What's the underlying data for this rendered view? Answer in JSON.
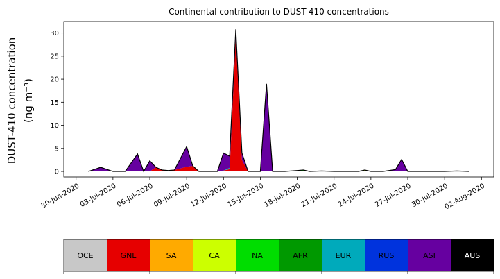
{
  "chart_data": {
    "type": "area",
    "title": "Continental contribution to DUST-410 concentrations",
    "xlabel": "",
    "ylabel_line1": "DUST-410 concentration",
    "ylabel_line2": "(ng m⁻³)",
    "ylim": [
      -1.2,
      32.5
    ],
    "xlim": [
      "2020-06-29",
      "2020-08-03"
    ],
    "yticks": [
      0,
      5,
      10,
      15,
      20,
      25,
      30
    ],
    "xticks": [
      "2020-06-30",
      "2020-07-03",
      "2020-07-06",
      "2020-07-09",
      "2020-07-12",
      "2020-07-15",
      "2020-07-18",
      "2020-07-21",
      "2020-07-24",
      "2020-07-27",
      "2020-07-30",
      "2020-08-02"
    ],
    "xtick_labels": [
      "30-Jun-2020",
      "03-Jul-2020",
      "06-Jul-2020",
      "09-Jul-2020",
      "12-Jul-2020",
      "15-Jul-2020",
      "18-Jul-2020",
      "21-Jul-2020",
      "24-Jul-2020",
      "27-Jul-2020",
      "30-Jul-2020",
      "02-Aug-2020"
    ],
    "x": [
      "2020-07-01",
      "2020-07-02",
      "2020-07-03",
      "2020-07-03 12:00",
      "2020-07-04",
      "2020-07-05",
      "2020-07-05 12:00",
      "2020-07-06",
      "2020-07-06 12:00",
      "2020-07-07",
      "2020-07-07 12:00",
      "2020-07-08",
      "2020-07-09",
      "2020-07-09 12:00",
      "2020-07-10",
      "2020-07-11",
      "2020-07-11 12:00",
      "2020-07-12",
      "2020-07-12 12:00",
      "2020-07-13",
      "2020-07-13 12:00",
      "2020-07-14",
      "2020-07-15",
      "2020-07-15 12:00",
      "2020-07-16",
      "2020-07-17",
      "2020-07-18",
      "2020-07-18 12:00",
      "2020-07-19",
      "2020-07-20",
      "2020-07-21",
      "2020-07-22",
      "2020-07-23",
      "2020-07-23 12:00",
      "2020-07-24",
      "2020-07-25",
      "2020-07-26",
      "2020-07-26 12:00",
      "2020-07-27",
      "2020-07-28",
      "2020-07-29",
      "2020-07-30",
      "2020-07-31",
      "2020-08-01"
    ],
    "series": [
      {
        "name": "OCE",
        "color": "#c8c8c8",
        "values": [
          0,
          0,
          0,
          0,
          0,
          0,
          0,
          0,
          0,
          0,
          0,
          0,
          0,
          0,
          0,
          0,
          0,
          0,
          0,
          0,
          0,
          0,
          0,
          0,
          0,
          0,
          0,
          0,
          0,
          0,
          0,
          0,
          0,
          0,
          0,
          0,
          0,
          0,
          0,
          0,
          0,
          0,
          0,
          0
        ]
      },
      {
        "name": "GNL",
        "color": "#e60000",
        "values": [
          0,
          0,
          0,
          0,
          0,
          0,
          0,
          0,
          0.9,
          0.3,
          0.2,
          0.3,
          1.0,
          1.2,
          0,
          0,
          0,
          0.2,
          0.5,
          29.0,
          2.5,
          0,
          0,
          0,
          0,
          0,
          0,
          0,
          0,
          0,
          0,
          0,
          0,
          0,
          0,
          0,
          0,
          0,
          0,
          0,
          0,
          0,
          0,
          0
        ]
      },
      {
        "name": "SA",
        "color": "#ffaa00",
        "values": [
          0,
          0,
          0,
          0,
          0,
          0,
          0,
          0,
          0,
          0,
          0,
          0,
          0,
          0,
          0,
          0,
          0,
          0,
          0,
          0,
          0,
          0,
          0,
          0,
          0,
          0,
          0,
          0,
          0,
          0.1,
          0,
          0,
          0,
          0,
          0,
          0,
          0,
          0,
          0,
          0,
          0,
          0,
          0,
          0
        ]
      },
      {
        "name": "CA",
        "color": "#ccff00",
        "values": [
          0,
          0,
          0,
          0,
          0,
          0,
          0,
          0,
          0,
          0,
          0,
          0,
          0,
          0,
          0,
          0,
          0,
          0,
          0,
          0,
          0,
          0,
          0,
          0,
          0,
          0,
          0,
          0,
          0,
          0,
          0,
          0,
          0,
          0.3,
          0,
          0,
          0,
          0,
          0,
          0,
          0,
          0,
          0,
          0
        ]
      },
      {
        "name": "NA",
        "color": "#00dd00",
        "values": [
          0,
          0,
          0,
          0,
          0,
          0,
          0,
          0,
          0,
          0,
          0,
          0,
          0,
          0,
          0,
          0,
          0,
          0,
          0,
          0,
          0,
          0,
          0,
          0,
          0,
          0,
          0.2,
          0.3,
          0,
          0,
          0,
          0,
          0,
          0,
          0,
          0,
          0,
          0,
          0,
          0,
          0,
          0,
          0,
          0
        ]
      },
      {
        "name": "AFR",
        "color": "#009900",
        "values": [
          0,
          0,
          0,
          0,
          0,
          0,
          0,
          0,
          0,
          0,
          0,
          0,
          0,
          0,
          0,
          0,
          0,
          0,
          0,
          0,
          0,
          0,
          0,
          0,
          0,
          0,
          0,
          0,
          0,
          0,
          0,
          0,
          0,
          0,
          0,
          0,
          0,
          0,
          0,
          0,
          0,
          0,
          0,
          0
        ]
      },
      {
        "name": "EUR",
        "color": "#00aabb",
        "values": [
          0,
          0,
          0,
          0,
          0,
          0,
          0,
          0,
          0,
          0,
          0,
          0,
          0,
          0,
          0,
          0,
          0,
          0,
          0.3,
          0,
          0,
          0,
          0,
          0,
          0,
          0,
          0,
          0,
          0,
          0,
          0,
          0,
          0,
          0,
          0,
          0,
          0,
          0,
          0,
          0,
          0,
          0,
          0,
          0
        ]
      },
      {
        "name": "RUS",
        "color": "#0033dd",
        "values": [
          0,
          0,
          0,
          0,
          0,
          0,
          0,
          0,
          0,
          0,
          0,
          0,
          0,
          0,
          0,
          0,
          0,
          0,
          0,
          0,
          0,
          0,
          0,
          0,
          0,
          0,
          0,
          0,
          0,
          0,
          0,
          0,
          0,
          0,
          0,
          0,
          0,
          0,
          0,
          0,
          0,
          0,
          0,
          0
        ]
      },
      {
        "name": "ASI",
        "color": "#6600a0",
        "values": [
          0,
          0.9,
          0,
          0,
          0,
          3.8,
          0,
          2.3,
          0,
          0,
          0,
          0,
          4.4,
          0,
          0,
          0,
          0,
          3.8,
          2.5,
          1.8,
          1.5,
          0,
          0,
          19.0,
          0,
          0,
          0,
          0,
          0,
          0,
          0,
          0,
          0,
          0,
          0,
          0,
          0.4,
          2.6,
          0,
          0,
          0,
          0,
          0.1,
          0
        ]
      },
      {
        "name": "AUS",
        "color": "#000000",
        "values": [
          0,
          0,
          0,
          0,
          0,
          0,
          0,
          0,
          0,
          0,
          0,
          0,
          0,
          0,
          0,
          0,
          0,
          0,
          0,
          0,
          0,
          0,
          0,
          0,
          0,
          0,
          0,
          0,
          0,
          0,
          0,
          0,
          0,
          0,
          0,
          0,
          0,
          0,
          0,
          0,
          0,
          0,
          0,
          0
        ]
      }
    ],
    "total_color": "#000000",
    "legend_placement": "bottom"
  }
}
